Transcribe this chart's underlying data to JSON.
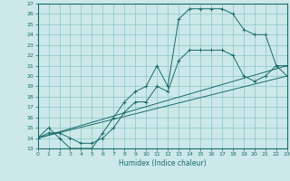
{
  "title": "",
  "xlabel": "Humidex (Indice chaleur)",
  "bg_color": "#cce8e8",
  "grid_color": "#88c8c8",
  "line_color": "#1a6b6b",
  "xmin": 0,
  "xmax": 23,
  "ymin": 13,
  "ymax": 27,
  "curve1_x": [
    0,
    1,
    2,
    3,
    4,
    5,
    6,
    7,
    8,
    9,
    10,
    11,
    12,
    13,
    14,
    15,
    16,
    17,
    18,
    19,
    20,
    21,
    22,
    23
  ],
  "curve1_y": [
    14,
    15,
    14,
    13,
    13,
    13,
    14.5,
    16,
    17.5,
    18.5,
    19,
    21,
    19,
    25.5,
    26.5,
    26.5,
    26.5,
    26.5,
    26,
    24.5,
    24,
    24,
    21,
    21
  ],
  "curve2_x": [
    0,
    1,
    2,
    3,
    4,
    5,
    6,
    7,
    8,
    9,
    10,
    11,
    12,
    13,
    14,
    15,
    16,
    17,
    18,
    19,
    20,
    21,
    22,
    23
  ],
  "curve2_y": [
    14,
    14.5,
    14.5,
    14,
    13.5,
    13.5,
    14,
    15,
    16.5,
    17.5,
    17.5,
    19,
    18.5,
    21.5,
    22.5,
    22.5,
    22.5,
    22.5,
    22,
    20,
    19.5,
    20,
    21,
    20
  ],
  "line1_x": [
    0,
    23
  ],
  "line1_y": [
    14,
    21
  ],
  "line2_x": [
    0,
    23
  ],
  "line2_y": [
    14,
    20
  ]
}
